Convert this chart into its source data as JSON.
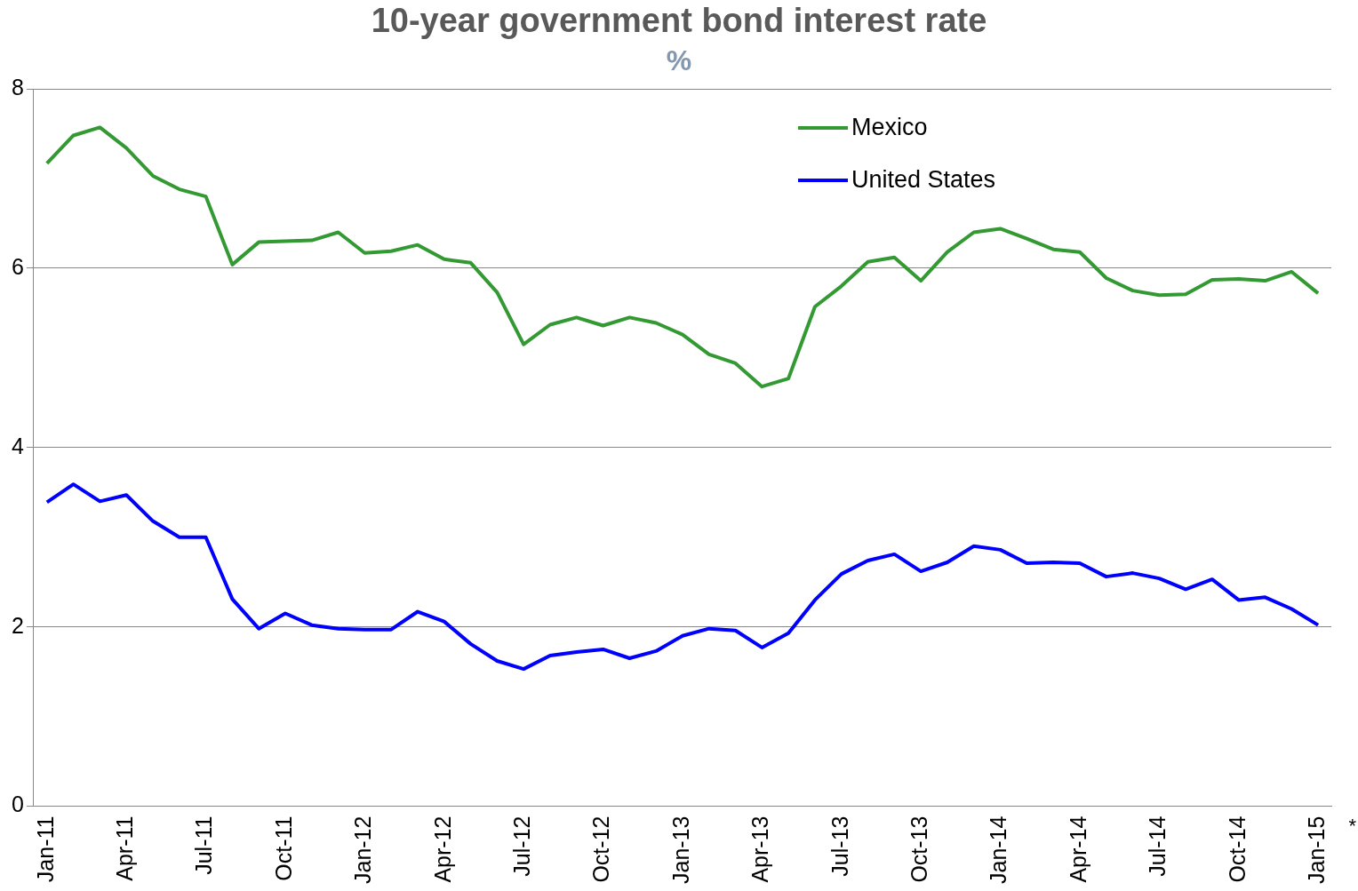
{
  "chart_data": {
    "type": "line",
    "title": "10-year government bond interest rate",
    "subtitle": "%",
    "categories": [
      "Jan-11",
      null,
      null,
      "Apr-11",
      null,
      null,
      "Jul-11",
      null,
      null,
      "Oct-11",
      null,
      null,
      "Jan-12",
      null,
      null,
      "Apr-12",
      null,
      null,
      "Jul-12",
      null,
      null,
      "Oct-12",
      null,
      null,
      "Jan-13",
      null,
      null,
      "Apr-13",
      null,
      null,
      "Jul-13",
      null,
      null,
      "Oct-13",
      null,
      null,
      "Jan-14",
      null,
      null,
      "Apr-14",
      null,
      null,
      "Jul-14",
      null,
      null,
      "Oct-14",
      null,
      null,
      "Jan-15"
    ],
    "series": [
      {
        "name": "Mexico",
        "color": "#339933",
        "values": [
          7.17,
          7.48,
          7.57,
          7.34,
          7.03,
          6.88,
          6.8,
          6.04,
          6.29,
          6.3,
          6.31,
          6.4,
          6.17,
          6.19,
          6.26,
          6.1,
          6.06,
          5.73,
          5.15,
          5.37,
          5.45,
          5.36,
          5.45,
          5.39,
          5.26,
          5.04,
          4.94,
          4.68,
          4.77,
          5.57,
          5.8,
          6.07,
          6.12,
          5.86,
          6.18,
          6.4,
          6.44,
          6.33,
          6.21,
          6.18,
          5.89,
          5.75,
          5.7,
          5.71,
          5.87,
          5.88,
          5.86,
          5.96,
          5.72
        ]
      },
      {
        "name": "United States",
        "color": "#0000ff",
        "values": [
          3.39,
          3.59,
          3.4,
          3.47,
          3.18,
          3.0,
          3.0,
          2.31,
          1.98,
          2.15,
          2.02,
          1.98,
          1.97,
          1.97,
          2.17,
          2.06,
          1.81,
          1.62,
          1.53,
          1.68,
          1.72,
          1.75,
          1.65,
          1.73,
          1.9,
          1.98,
          1.96,
          1.77,
          1.93,
          2.3,
          2.59,
          2.74,
          2.81,
          2.62,
          2.72,
          2.9,
          2.86,
          2.71,
          2.72,
          2.71,
          2.56,
          2.6,
          2.54,
          2.42,
          2.53,
          2.3,
          2.33,
          2.2,
          2.02
        ]
      }
    ],
    "ylim": [
      0,
      8
    ],
    "yticks": [
      0,
      2,
      4,
      6,
      8
    ],
    "grid": "y",
    "legend": "top right",
    "marker": "none",
    "line_style": "solid",
    "annotations": [
      "*"
    ]
  }
}
